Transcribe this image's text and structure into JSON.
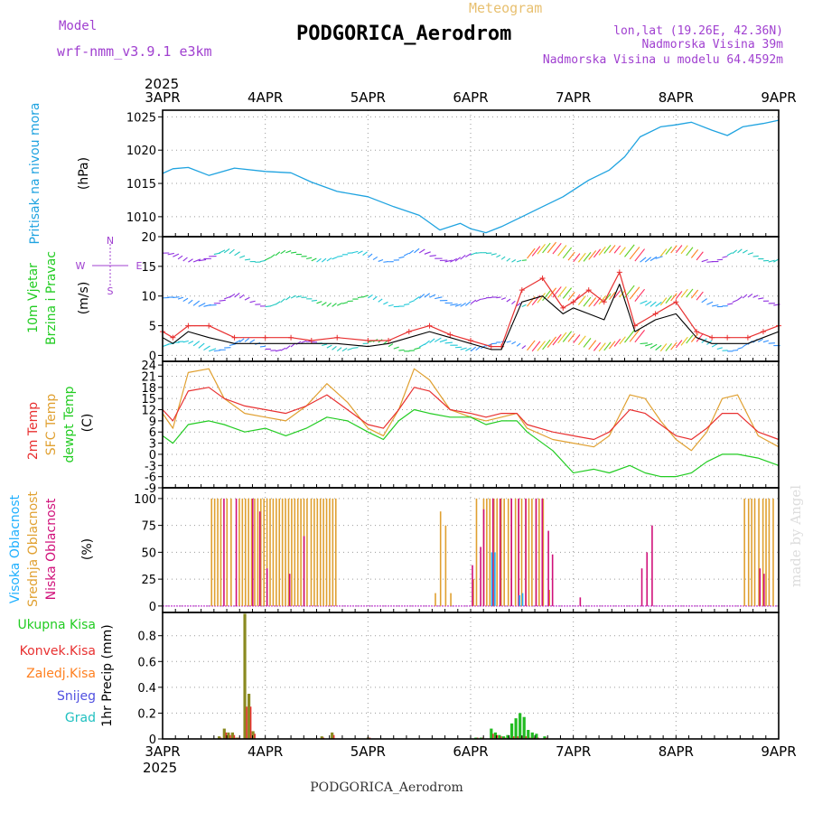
{
  "header": {
    "model_label": "Model",
    "model_name": "wrf-nmm_v3.9.1 e3km",
    "title": "PODGORICA_Aerodrom",
    "meteogram_label": "Meteogram",
    "lonlat": "lon,lat (19.26E, 42.36N)",
    "elevation": "Nadmorska Visina 39m",
    "model_elevation": "Nadmorska Visina u modelu 64.4592m",
    "footer_station": "PODGORICA_Aerodrom",
    "watermark": "made by Angel",
    "year": "2025"
  },
  "colors": {
    "pressure": "#1fa3e0",
    "wind_label": "#22cc22",
    "wind_speed": "#000000",
    "wind_gust": "#e83030",
    "t2m": "#e83030",
    "sfc": "#e0a030",
    "dew": "#22cc22",
    "high_cloud": "#1fb0ff",
    "mid_cloud": "#e0a030",
    "low_cloud": "#d0107a",
    "purple": "#a040d0"
  },
  "chart_data": [
    {
      "type": "line",
      "id": "pressure",
      "ylabel_main": "Pritisak na nivou mora",
      "ylabel_unit": "(hPa)",
      "ylim": [
        1007,
        1026
      ],
      "yticks": [
        1010,
        1015,
        1020,
        1025
      ],
      "x_days": [
        0,
        0.1,
        0.25,
        0.45,
        0.7,
        1.0,
        1.25,
        1.45,
        1.7,
        2.0,
        2.25,
        2.5,
        2.7,
        2.9,
        3.0,
        3.15,
        3.3,
        3.5,
        3.7,
        3.9,
        4.0,
        4.15,
        4.35,
        4.5,
        4.65,
        4.85,
        5.0,
        5.15,
        5.35,
        5.5,
        5.65,
        5.85,
        6.0
      ],
      "values": [
        1016.5,
        1017.2,
        1017.4,
        1016.2,
        1017.3,
        1016.8,
        1016.6,
        1015.2,
        1013.8,
        1013.0,
        1011.5,
        1010.2,
        1008.0,
        1009.0,
        1008.2,
        1007.6,
        1008.5,
        1010.0,
        1011.5,
        1013.0,
        1014.0,
        1015.5,
        1017.0,
        1019.0,
        1022.0,
        1023.5,
        1023.8,
        1024.2,
        1023.0,
        1022.2,
        1023.5,
        1024.0,
        1024.5
      ]
    },
    {
      "type": "line",
      "id": "wind",
      "ylabel_main": "10m Vjetar",
      "ylabel_sub": "Brzina i Pravac",
      "ylabel_unit": "(m/s)",
      "compass": [
        "N",
        "E",
        "W",
        "S"
      ],
      "ylim": [
        -1,
        20
      ],
      "yticks": [
        0,
        5,
        10,
        15,
        20
      ],
      "x_days": [
        0,
        0.1,
        0.25,
        0.45,
        0.7,
        1.0,
        1.25,
        1.45,
        1.7,
        2.0,
        2.2,
        2.4,
        2.6,
        2.8,
        3.0,
        3.2,
        3.3,
        3.5,
        3.7,
        3.9,
        4.0,
        4.15,
        4.3,
        4.45,
        4.6,
        4.8,
        5.0,
        5.2,
        5.35,
        5.5,
        5.7,
        5.85,
        6.0
      ],
      "speed": [
        3,
        2,
        4,
        3,
        2,
        2,
        2,
        2,
        2,
        1.5,
        2,
        3,
        4,
        3,
        2,
        1,
        1,
        9,
        10,
        7,
        8,
        7,
        6,
        12,
        4,
        6,
        7,
        3,
        2,
        2,
        2,
        3,
        4
      ],
      "gust": [
        4,
        3,
        5,
        5,
        3,
        3,
        3,
        2.5,
        3,
        2.5,
        2.5,
        4,
        5,
        3.5,
        2.5,
        1.5,
        1.5,
        11,
        13,
        8,
        9,
        11,
        9,
        14,
        5,
        7,
        9,
        4,
        3,
        3,
        3,
        4,
        5
      ],
      "barb_rows": [
        1.5,
        9,
        16.5
      ]
    },
    {
      "type": "line",
      "id": "temperature",
      "ylabel_a": "2m Temp",
      "ylabel_b": "SFC Temp",
      "ylabel_c": "dewpt Temp",
      "ylabel_unit": "(C)",
      "ylim": [
        -9,
        25
      ],
      "yticks": [
        24,
        21,
        18,
        15,
        12,
        9,
        6,
        3,
        0,
        -3,
        -6,
        -9
      ],
      "x_days": [
        0,
        0.1,
        0.25,
        0.45,
        0.6,
        0.8,
        1.0,
        1.2,
        1.4,
        1.6,
        1.8,
        2.0,
        2.15,
        2.3,
        2.45,
        2.6,
        2.8,
        3.0,
        3.15,
        3.3,
        3.45,
        3.55,
        3.8,
        4.0,
        4.2,
        4.35,
        4.55,
        4.7,
        4.85,
        5.0,
        5.15,
        5.3,
        5.45,
        5.6,
        5.8,
        6.0
      ],
      "t2m": [
        12,
        9,
        17,
        18,
        15,
        13,
        12,
        11,
        13,
        16,
        12,
        8,
        7,
        12,
        18,
        17,
        12,
        11,
        10,
        11,
        11,
        8,
        6,
        5,
        4,
        6,
        12,
        11,
        8,
        5,
        4,
        7,
        11,
        11,
        6,
        4
      ],
      "sfc": [
        11,
        7,
        22,
        23,
        15,
        11,
        10,
        9,
        13,
        19,
        14,
        7,
        5,
        12,
        23,
        20,
        12,
        10,
        9,
        10,
        11,
        7,
        4,
        3,
        2,
        5,
        16,
        15,
        9,
        4,
        1,
        6,
        15,
        16,
        5,
        2
      ],
      "dew": [
        5,
        3,
        8,
        9,
        8,
        6,
        7,
        5,
        7,
        10,
        9,
        6,
        4,
        9,
        12,
        11,
        10,
        10,
        8,
        9,
        9,
        6,
        1,
        -5,
        -4,
        -5,
        -3,
        -5,
        -6,
        -6,
        -5,
        -2,
        0,
        0,
        -1,
        -3
      ]
    },
    {
      "type": "bar",
      "id": "cloud",
      "ylabel_a": "Visoka Oblacnost",
      "ylabel_b": "Srednja Oblacnost",
      "ylabel_c": "Niska Oblacnost",
      "ylabel_unit": "(%)",
      "ylim": [
        0,
        100
      ],
      "yticks": [
        0,
        25,
        50,
        75,
        100
      ],
      "mid_x": [
        0.47,
        0.5,
        0.53,
        0.56,
        0.62,
        0.66,
        0.74,
        0.77,
        0.8,
        0.83,
        0.86,
        0.89,
        0.92,
        0.95,
        0.98,
        1.01,
        1.04,
        1.07,
        1.1,
        1.13,
        1.16,
        1.19,
        1.22,
        1.25,
        1.28,
        1.31,
        1.34,
        1.37,
        1.4,
        1.44,
        1.47,
        1.5,
        1.53,
        1.56,
        1.59,
        1.62,
        1.65,
        1.68,
        2.65,
        2.7,
        2.75,
        2.8,
        3.02,
        3.05,
        3.12,
        3.15,
        3.18,
        3.22,
        3.25,
        3.29,
        3.32,
        3.36,
        3.39,
        3.43,
        3.46,
        3.49,
        3.53,
        3.56,
        3.59,
        3.63,
        3.66,
        3.7,
        3.76,
        5.66,
        5.7,
        5.73,
        5.76,
        5.8,
        5.84,
        5.87,
        5.9,
        5.94
      ],
      "mid_v": [
        100,
        100,
        100,
        100,
        100,
        100,
        100,
        100,
        100,
        100,
        100,
        100,
        100,
        100,
        100,
        100,
        100,
        100,
        100,
        100,
        100,
        100,
        100,
        100,
        100,
        100,
        100,
        100,
        100,
        100,
        100,
        100,
        100,
        100,
        100,
        100,
        100,
        100,
        12,
        88,
        75,
        12,
        25,
        100,
        100,
        100,
        100,
        100,
        100,
        100,
        100,
        100,
        100,
        100,
        100,
        100,
        100,
        100,
        100,
        100,
        100,
        100,
        15,
        100,
        100,
        100,
        100,
        100,
        100,
        100,
        100,
        100
      ],
      "low_x": [
        0.58,
        0.7,
        0.86,
        0.93,
        1.0,
        1.22,
        1.36,
        3.0,
        3.08,
        3.11,
        3.2,
        3.27,
        3.38,
        3.45,
        3.52,
        3.62,
        3.68,
        3.74,
        3.78,
        4.05,
        4.65,
        4.7,
        4.75,
        5.8,
        5.84
      ],
      "low_v": [
        100,
        100,
        100,
        88,
        35,
        30,
        65,
        38,
        55,
        90,
        100,
        100,
        100,
        100,
        100,
        100,
        100,
        70,
        48,
        8,
        35,
        50,
        75,
        35,
        30
      ],
      "high_x": [
        3.18,
        3.21,
        3.45,
        3.48
      ],
      "high_v": [
        50,
        50,
        10,
        12
      ]
    },
    {
      "type": "bar",
      "id": "precip",
      "ylabel_unit": "1hr Precip (mm)",
      "legend": [
        "Ukupna Kisa",
        "Konvek.Kisa",
        "Zaledj.Kisa",
        "Snijeg",
        "Grad"
      ],
      "ylim": [
        0,
        0.98
      ],
      "yticks": [
        0,
        0.2,
        0.4,
        0.6,
        0.8
      ],
      "x_days": [
        0.55,
        0.6,
        0.64,
        0.68,
        0.72,
        0.8,
        0.84,
        0.88,
        1.55,
        1.65,
        2.0,
        3.05,
        3.1,
        3.2,
        3.24,
        3.28,
        3.32,
        3.36,
        3.4,
        3.44,
        3.48,
        3.52,
        3.56,
        3.6,
        3.64,
        3.72
      ],
      "total": [
        0.02,
        0.08,
        0.05,
        0.05,
        0.01,
        0.97,
        0.35,
        0.06,
        0.02,
        0.05,
        0.01,
        0.01,
        0.01,
        0.08,
        0.05,
        0.03,
        0.02,
        0.03,
        0.12,
        0.16,
        0.2,
        0.17,
        0.07,
        0.05,
        0.04,
        0.02
      ],
      "convective": [
        0.01,
        0.05,
        0.03,
        0.03,
        0.01,
        0.25,
        0.25,
        0.04,
        0.01,
        0.03,
        0.01,
        0.01,
        0.01,
        0.04,
        0.03,
        0.02,
        0.01,
        0.01,
        0.02,
        0.02,
        0.02,
        0.02,
        0.01,
        0.01,
        0.01,
        0.01
      ]
    }
  ],
  "x_axis": {
    "days": [
      "3APR",
      "4APR",
      "5APR",
      "6APR",
      "7APR",
      "8APR",
      "9APR"
    ]
  }
}
